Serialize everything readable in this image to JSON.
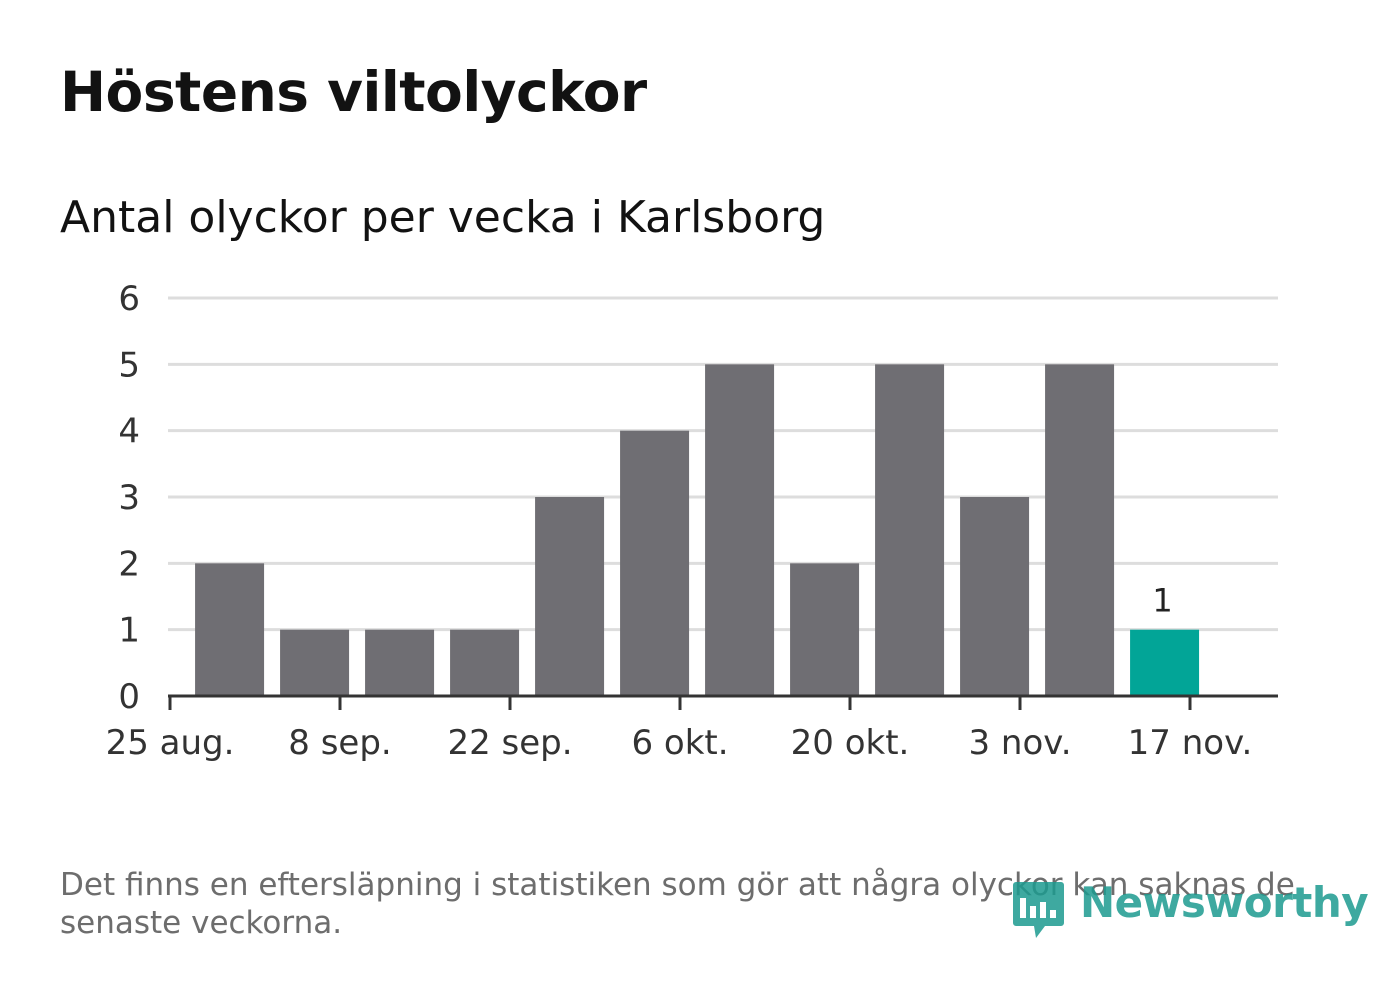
{
  "title": "Höstens viltolyckor",
  "subtitle": "Antal olyckor per vecka i Karlsborg",
  "footnote": "Det finns en eftersläpning i statistiken som gör att några olyckor kan saknas de senaste veckorna.",
  "brand": {
    "name": "Newsworthy",
    "color": "#1d9b90",
    "icon": "newsworthy-bar-chart-icon"
  },
  "colors": {
    "bar": "#6f6e73",
    "highlight": "#02a597",
    "grid": "#dddddd",
    "axis": "#333333"
  },
  "chart_data": {
    "type": "bar",
    "x": [
      "2019-08-26",
      "2019-09-02",
      "2019-09-09",
      "2019-09-16",
      "2019-09-23",
      "2019-09-30",
      "2019-10-07",
      "2019-10-14",
      "2019-10-21",
      "2019-10-28",
      "2019-11-04",
      "2019-11-11"
    ],
    "values": [
      2,
      1,
      1,
      1,
      3,
      4,
      5,
      2,
      5,
      3,
      5,
      1
    ],
    "highlight_index": 11,
    "data_labels": [
      {
        "index": 11,
        "text": "1"
      }
    ],
    "x_ticks": [
      {
        "date": "2019-08-25",
        "label": "25 aug."
      },
      {
        "date": "2019-09-08",
        "label": "8 sep."
      },
      {
        "date": "2019-09-22",
        "label": "22 sep."
      },
      {
        "date": "2019-10-06",
        "label": "6 okt."
      },
      {
        "date": "2019-10-20",
        "label": "20 okt."
      },
      {
        "date": "2019-11-03",
        "label": "3 nov."
      },
      {
        "date": "2019-11-17",
        "label": "17 nov."
      }
    ],
    "y_ticks": [
      0,
      1,
      2,
      3,
      4,
      5,
      6
    ],
    "ylim": [
      0,
      6
    ],
    "grid": true,
    "xlabel": "",
    "ylabel": ""
  }
}
